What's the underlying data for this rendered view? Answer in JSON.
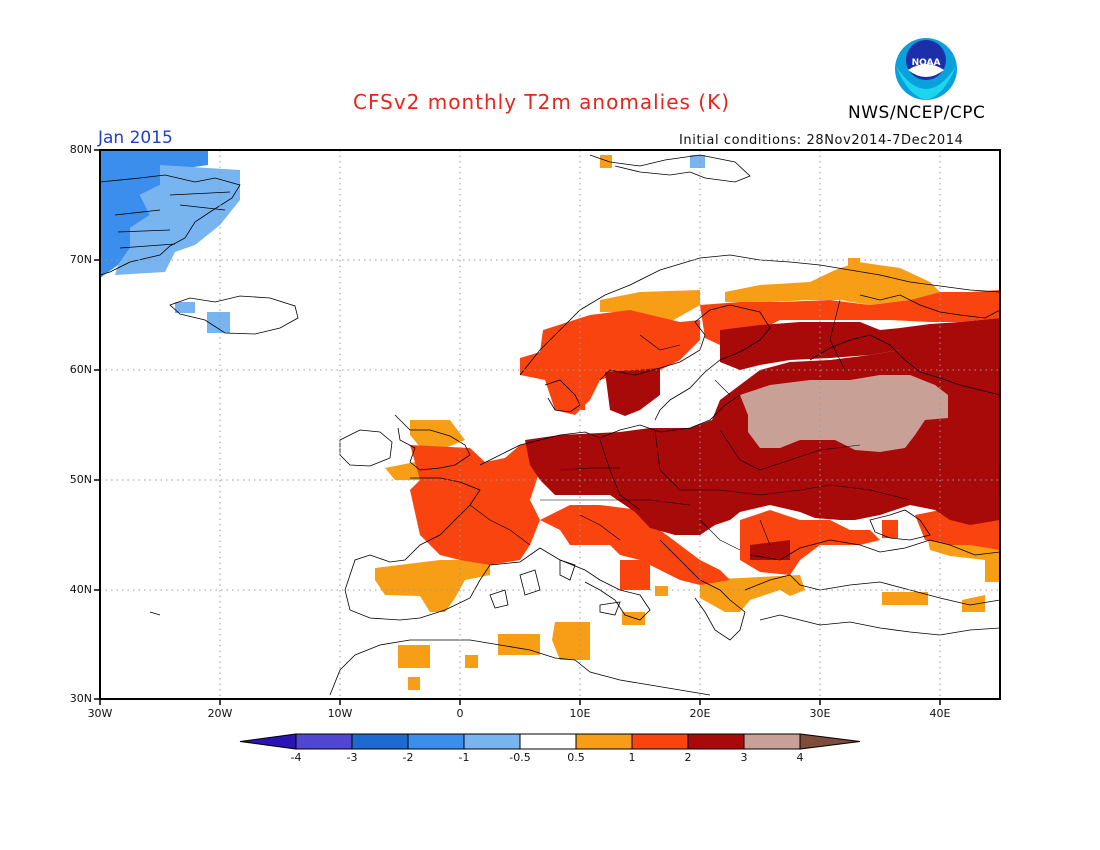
{
  "header": {
    "title": "CFSv2 monthly T2m anomalies (K)",
    "agency": "NWS/NCEP/CPC",
    "logo_text": "NOAA",
    "month": "Jan 2015",
    "initial_conditions": "Initial conditions: 28Nov2014-7Dec2014"
  },
  "map": {
    "lon_range": [
      -30,
      45
    ],
    "lat_range": [
      30,
      80
    ],
    "lat_labels": [
      "30N",
      "40N",
      "50N",
      "60N",
      "70N",
      "80N"
    ],
    "lon_labels": [
      "30W",
      "20W",
      "10W",
      "0",
      "10E",
      "20E",
      "30E",
      "40E"
    ],
    "grid": true,
    "anomaly_regions": [
      {
        "category": "-1.5_to_-3",
        "description": "Greenland east coast cold anomaly"
      },
      {
        "category": "-0.5_to_-1",
        "description": "Greenland fringe and western Iceland"
      },
      {
        "category": "0.5_to_1",
        "description": "Iberia, North Africa, Scandinavian fringe"
      },
      {
        "category": "1_to_2",
        "description": "Western and northern Europe"
      },
      {
        "category": "2_to_3",
        "description": "Central and eastern Europe"
      },
      {
        "category": "3_to_4",
        "description": "Western Russia"
      }
    ]
  },
  "colorbar": {
    "labels": [
      "-4",
      "-3",
      "-2",
      "-1",
      "-0.5",
      "0.5",
      "1",
      "2",
      "3",
      "4"
    ],
    "colors": [
      "#2a14b4",
      "#5046d2",
      "#1e6ad0",
      "#3c8eec",
      "#78b4f0",
      "#ffffff",
      "#f79d16",
      "#fa4410",
      "#a80a0a",
      "#c9a095",
      "#7d4c3a"
    ]
  }
}
